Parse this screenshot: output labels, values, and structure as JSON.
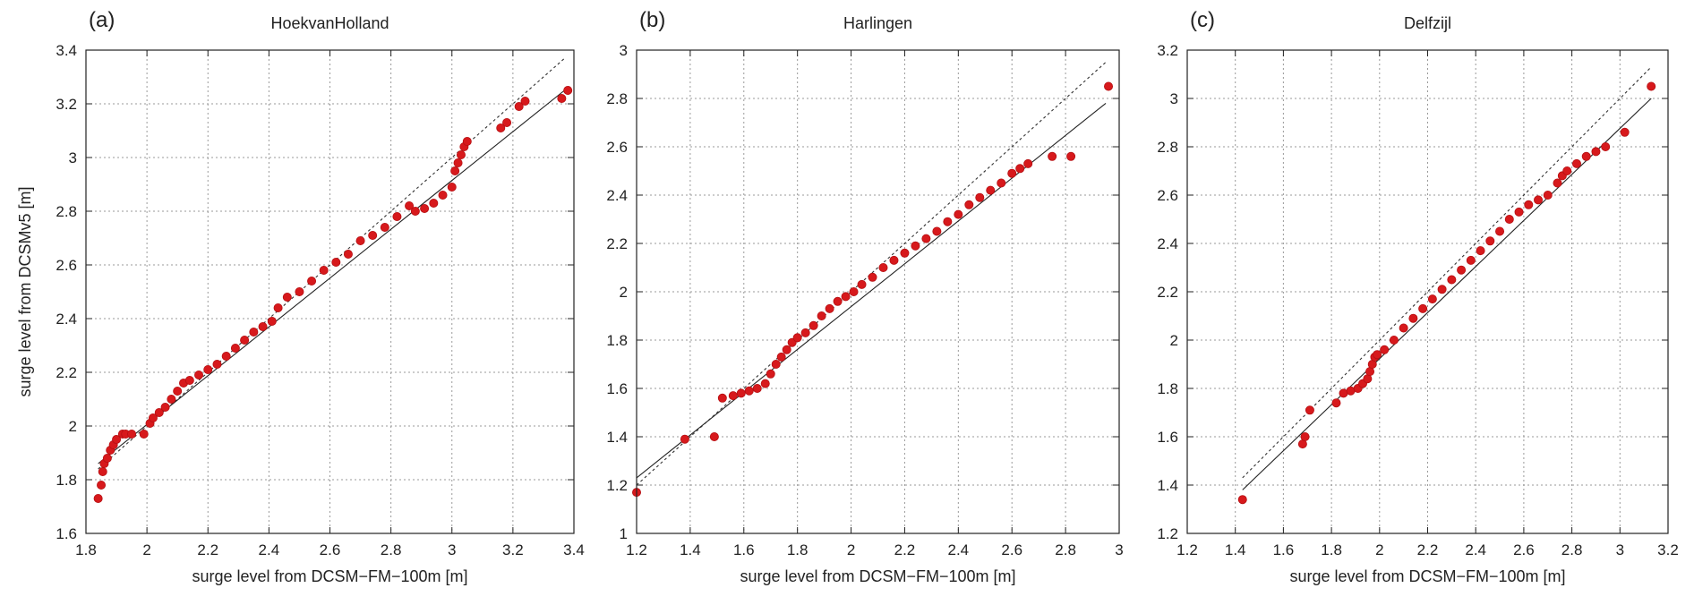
{
  "colors": {
    "marker": "#d7191c",
    "marker_stroke": "#b50f12",
    "grid": "#9a9a9a",
    "axis": "#222222",
    "fit_line": "#222222",
    "identity_line": "#333333"
  },
  "chart_data": [
    {
      "type": "scatter",
      "panel_label": "(a)",
      "title": "HoekvanHolland",
      "xlabel": "surge level from DCSM−FM−100m  [m]",
      "ylabel": "surge level from DCSMv5  [m]",
      "xlim": [
        1.8,
        3.4
      ],
      "ylim": [
        1.6,
        3.4
      ],
      "xticks": [
        "1.8",
        "2",
        "2.2",
        "2.4",
        "2.6",
        "2.8",
        "3",
        "3.2",
        "3.4"
      ],
      "yticks": [
        "1.6",
        "1.8",
        "2",
        "2.2",
        "2.4",
        "2.6",
        "2.8",
        "3",
        "3.2",
        "3.4"
      ],
      "grid": true,
      "identity_line": {
        "style": "dashed",
        "from": [
          1.84,
          1.84
        ],
        "to": [
          3.37,
          3.37
        ]
      },
      "fit_line": {
        "style": "solid",
        "from": [
          1.84,
          1.86
        ],
        "to": [
          3.38,
          3.26
        ]
      },
      "x": [
        1.84,
        1.85,
        1.855,
        1.86,
        1.87,
        1.88,
        1.89,
        1.9,
        1.92,
        1.93,
        1.95,
        1.99,
        2.01,
        2.02,
        2.04,
        2.06,
        2.08,
        2.1,
        2.12,
        2.14,
        2.17,
        2.2,
        2.23,
        2.26,
        2.29,
        2.32,
        2.35,
        2.38,
        2.41,
        2.43,
        2.46,
        2.5,
        2.54,
        2.58,
        2.62,
        2.66,
        2.7,
        2.74,
        2.78,
        2.82,
        2.86,
        2.88,
        2.91,
        2.94,
        2.97,
        3.0,
        3.01,
        3.02,
        3.03,
        3.04,
        3.05,
        3.16,
        3.18,
        3.22,
        3.24,
        3.36,
        3.38
      ],
      "y": [
        1.73,
        1.78,
        1.83,
        1.86,
        1.88,
        1.91,
        1.93,
        1.95,
        1.97,
        1.97,
        1.97,
        1.97,
        2.01,
        2.03,
        2.05,
        2.07,
        2.1,
        2.13,
        2.16,
        2.17,
        2.19,
        2.21,
        2.23,
        2.26,
        2.29,
        2.32,
        2.35,
        2.37,
        2.39,
        2.44,
        2.48,
        2.5,
        2.54,
        2.58,
        2.61,
        2.64,
        2.69,
        2.71,
        2.74,
        2.78,
        2.82,
        2.8,
        2.81,
        2.83,
        2.86,
        2.89,
        2.95,
        2.98,
        3.01,
        3.04,
        3.06,
        3.11,
        3.13,
        3.19,
        3.21,
        3.22,
        3.25
      ]
    },
    {
      "type": "scatter",
      "panel_label": "(b)",
      "title": "Harlingen",
      "xlabel": "surge level from DCSM−FM−100m  [m]",
      "ylabel": "",
      "xlim": [
        1.2,
        3.0
      ],
      "ylim": [
        1.0,
        3.0
      ],
      "xticks": [
        "1.2",
        "1.4",
        "1.6",
        "1.8",
        "2",
        "2.2",
        "2.4",
        "2.6",
        "2.8",
        "3"
      ],
      "yticks": [
        "1",
        "1.2",
        "1.4",
        "1.6",
        "1.8",
        "2",
        "2.2",
        "2.4",
        "2.6",
        "2.8",
        "3"
      ],
      "grid": true,
      "identity_line": {
        "style": "dashed",
        "from": [
          1.2,
          1.2
        ],
        "to": [
          2.95,
          2.95
        ]
      },
      "fit_line": {
        "style": "solid",
        "from": [
          1.2,
          1.23
        ],
        "to": [
          2.95,
          2.78
        ]
      },
      "x": [
        1.2,
        1.38,
        1.49,
        1.52,
        1.56,
        1.59,
        1.62,
        1.65,
        1.68,
        1.7,
        1.72,
        1.74,
        1.76,
        1.78,
        1.8,
        1.83,
        1.86,
        1.89,
        1.92,
        1.95,
        1.98,
        2.01,
        2.04,
        2.08,
        2.12,
        2.16,
        2.2,
        2.24,
        2.28,
        2.32,
        2.36,
        2.4,
        2.44,
        2.48,
        2.52,
        2.56,
        2.6,
        2.63,
        2.66,
        2.75,
        2.82,
        2.96
      ],
      "y": [
        1.17,
        1.39,
        1.4,
        1.56,
        1.57,
        1.58,
        1.59,
        1.6,
        1.62,
        1.66,
        1.7,
        1.73,
        1.76,
        1.79,
        1.81,
        1.83,
        1.86,
        1.9,
        1.93,
        1.96,
        1.98,
        2.0,
        2.03,
        2.06,
        2.1,
        2.13,
        2.16,
        2.19,
        2.22,
        2.25,
        2.29,
        2.32,
        2.36,
        2.39,
        2.42,
        2.45,
        2.49,
        2.51,
        2.53,
        2.56,
        2.56,
        2.85
      ]
    },
    {
      "type": "scatter",
      "panel_label": "(c)",
      "title": "Delfzijl",
      "xlabel": "surge level from DCSM−FM−100m  [m]",
      "ylabel": "",
      "xlim": [
        1.2,
        3.2
      ],
      "ylim": [
        1.2,
        3.2
      ],
      "xticks": [
        "1.2",
        "1.4",
        "1.6",
        "1.8",
        "2",
        "2.2",
        "2.4",
        "2.6",
        "2.8",
        "3",
        "3.2"
      ],
      "yticks": [
        "1.2",
        "1.4",
        "1.6",
        "1.8",
        "2",
        "2.2",
        "2.4",
        "2.6",
        "2.8",
        "3",
        "3.2"
      ],
      "grid": true,
      "identity_line": {
        "style": "dashed",
        "from": [
          1.43,
          1.43
        ],
        "to": [
          3.13,
          3.13
        ]
      },
      "fit_line": {
        "style": "solid",
        "from": [
          1.43,
          1.38
        ],
        "to": [
          3.13,
          3.0
        ]
      },
      "x": [
        1.43,
        1.68,
        1.69,
        1.71,
        1.82,
        1.85,
        1.88,
        1.91,
        1.93,
        1.95,
        1.96,
        1.97,
        1.98,
        1.99,
        2.02,
        2.06,
        2.1,
        2.14,
        2.18,
        2.22,
        2.26,
        2.3,
        2.34,
        2.38,
        2.42,
        2.46,
        2.5,
        2.54,
        2.58,
        2.62,
        2.66,
        2.7,
        2.74,
        2.76,
        2.78,
        2.82,
        2.86,
        2.9,
        2.94,
        3.02,
        3.13
      ],
      "y": [
        1.34,
        1.57,
        1.6,
        1.71,
        1.74,
        1.78,
        1.79,
        1.8,
        1.82,
        1.84,
        1.87,
        1.9,
        1.93,
        1.94,
        1.96,
        2.0,
        2.05,
        2.09,
        2.13,
        2.17,
        2.21,
        2.25,
        2.29,
        2.33,
        2.37,
        2.41,
        2.45,
        2.5,
        2.53,
        2.56,
        2.58,
        2.6,
        2.65,
        2.68,
        2.7,
        2.73,
        2.76,
        2.78,
        2.8,
        2.86,
        3.05
      ]
    }
  ]
}
